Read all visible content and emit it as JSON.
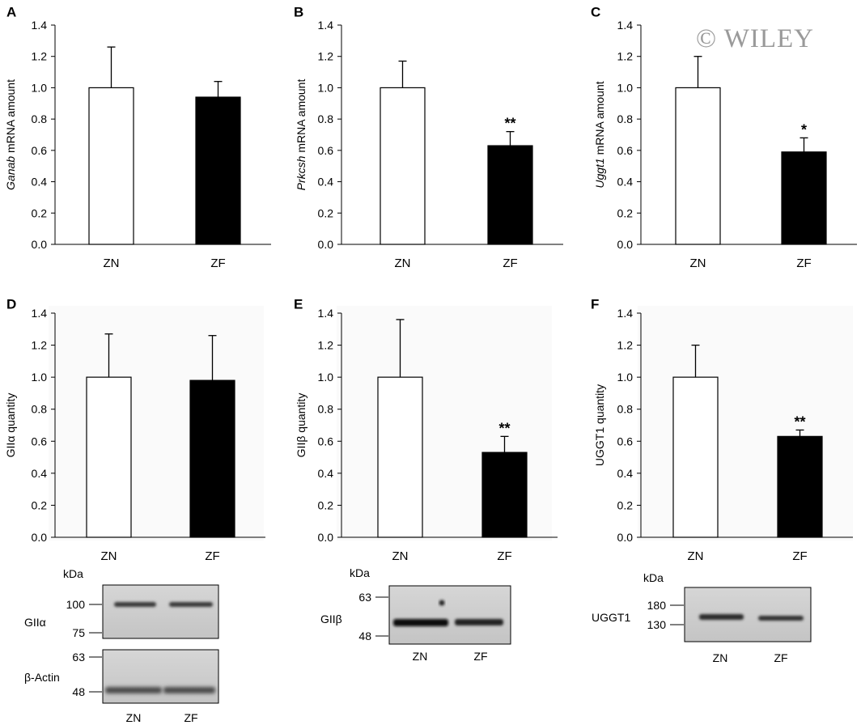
{
  "watermark": "© WILEY",
  "chart_data": [
    {
      "panel": "A",
      "type": "bar",
      "ylabel_italic": "Ganab",
      "ylabel_rest": " mRNA amount",
      "categories": [
        "ZN",
        "ZF"
      ],
      "values": [
        1.0,
        0.94
      ],
      "errors": [
        0.26,
        0.1
      ],
      "significance": [
        "",
        ""
      ],
      "ylim": [
        0,
        1.4
      ],
      "yticks": [
        "0.0",
        "0.2",
        "0.4",
        "0.6",
        "0.8",
        "1.0",
        "1.2",
        "1.4"
      ],
      "colors": [
        "#ffffff",
        "#000000"
      ]
    },
    {
      "panel": "B",
      "type": "bar",
      "ylabel_italic": "Prkcsh",
      "ylabel_rest": " mRNA amount",
      "categories": [
        "ZN",
        "ZF"
      ],
      "values": [
        1.0,
        0.63
      ],
      "errors": [
        0.17,
        0.09
      ],
      "significance": [
        "",
        "**"
      ],
      "ylim": [
        0,
        1.4
      ],
      "yticks": [
        "0.0",
        "0.2",
        "0.4",
        "0.6",
        "0.8",
        "1.0",
        "1.2",
        "1.4"
      ],
      "colors": [
        "#ffffff",
        "#000000"
      ]
    },
    {
      "panel": "C",
      "type": "bar",
      "ylabel_italic": "Uggt1",
      "ylabel_rest": " mRNA amount",
      "categories": [
        "ZN",
        "ZF"
      ],
      "values": [
        1.0,
        0.59
      ],
      "errors": [
        0.2,
        0.09
      ],
      "significance": [
        "",
        "*"
      ],
      "ylim": [
        0,
        1.4
      ],
      "yticks": [
        "0.0",
        "0.2",
        "0.4",
        "0.6",
        "0.8",
        "1.0",
        "1.2",
        "1.4"
      ],
      "colors": [
        "#ffffff",
        "#000000"
      ]
    },
    {
      "panel": "D",
      "type": "bar",
      "ylabel_italic": "",
      "ylabel_rest": "GIIα quantity",
      "categories": [
        "ZN",
        "ZF"
      ],
      "values": [
        1.0,
        0.98
      ],
      "errors": [
        0.27,
        0.28
      ],
      "significance": [
        "",
        ""
      ],
      "ylim": [
        0,
        1.4
      ],
      "yticks": [
        "0.0",
        "0.2",
        "0.4",
        "0.6",
        "0.8",
        "1.0",
        "1.2",
        "1.4"
      ],
      "colors": [
        "#ffffff",
        "#000000"
      ]
    },
    {
      "panel": "E",
      "type": "bar",
      "ylabel_italic": "",
      "ylabel_rest": "GIIβ quantity",
      "categories": [
        "ZN",
        "ZF"
      ],
      "values": [
        1.0,
        0.53
      ],
      "errors": [
        0.36,
        0.1
      ],
      "significance": [
        "",
        "**"
      ],
      "ylim": [
        0,
        1.4
      ],
      "yticks": [
        "0.0",
        "0.2",
        "0.4",
        "0.6",
        "0.8",
        "1.0",
        "1.2",
        "1.4"
      ],
      "colors": [
        "#ffffff",
        "#000000"
      ]
    },
    {
      "panel": "F",
      "type": "bar",
      "ylabel_italic": "",
      "ylabel_rest": "UGGT1 quantity",
      "categories": [
        "ZN",
        "ZF"
      ],
      "values": [
        1.0,
        0.63
      ],
      "errors": [
        0.2,
        0.04
      ],
      "significance": [
        "",
        "**"
      ],
      "ylim": [
        0,
        1.4
      ],
      "yticks": [
        "0.0",
        "0.2",
        "0.4",
        "0.6",
        "0.8",
        "1.0",
        "1.2",
        "1.4"
      ],
      "colors": [
        "#ffffff",
        "#000000"
      ]
    }
  ],
  "blots": [
    {
      "panel": "D",
      "kda_label": "kDa",
      "lane_labels": [
        "ZN",
        "ZF"
      ],
      "strips": [
        {
          "protein": "GIIα",
          "markers": [
            "100",
            "75"
          ]
        },
        {
          "protein": "β-Actin",
          "markers": [
            "63",
            "48"
          ]
        }
      ]
    },
    {
      "panel": "E",
      "kda_label": "kDa",
      "lane_labels": [
        "ZN",
        "ZF"
      ],
      "strips": [
        {
          "protein": "GIIβ",
          "markers": [
            "63",
            "48"
          ]
        }
      ]
    },
    {
      "panel": "F",
      "kda_label": "kDa",
      "lane_labels": [
        "ZN",
        "ZF"
      ],
      "strips": [
        {
          "protein": "UGGT1",
          "markers": [
            "180",
            "130"
          ]
        }
      ]
    }
  ]
}
